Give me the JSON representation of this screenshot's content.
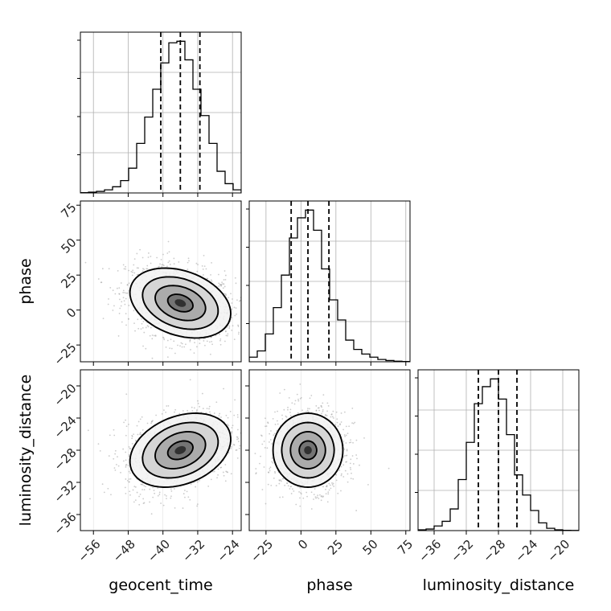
{
  "chart_data": {
    "type": "corner",
    "parameters": [
      "geocent_time",
      "phase",
      "luminosity_distance"
    ],
    "axes": {
      "geocent_time": {
        "label": "geocent_time",
        "range": [
          -59,
          -22
        ],
        "ticks": [
          -56,
          -48,
          -40,
          -32,
          -24
        ],
        "tick_labels": [
          "−56",
          "−48",
          "−40",
          "−32",
          "−24"
        ]
      },
      "phase": {
        "label": "phase",
        "range": [
          -37,
          78
        ],
        "ticks": [
          -25,
          0,
          25,
          50,
          75
        ],
        "tick_labels": [
          "−25",
          "0",
          "25",
          "50",
          "75"
        ]
      },
      "luminosity_distance": {
        "label": "luminosity_distance",
        "range": [
          -38,
          -18
        ],
        "ticks": [
          -36,
          -32,
          -28,
          -24,
          -20
        ],
        "tick_labels": [
          "−36",
          "−32",
          "−28",
          "−24",
          "−20"
        ]
      }
    },
    "quantiles": {
      "geocent_time": [
        -40.5,
        -36.0,
        -31.5
      ],
      "phase": [
        -7.0,
        5.0,
        20.0
      ],
      "luminosity_distance": [
        -30.5,
        -28.0,
        -25.7
      ]
    },
    "histograms": {
      "geocent_time": {
        "bin_edges": [
          -59,
          -57.15,
          -55.3,
          -53.45,
          -51.6,
          -49.75,
          -47.9,
          -46.05,
          -44.2,
          -42.35,
          -40.5,
          -38.65,
          -36.8,
          -34.95,
          -33.1,
          -31.25,
          -29.4,
          -27.55,
          -25.7,
          -23.85,
          -22
        ],
        "counts": [
          0.002,
          0.005,
          0.01,
          0.02,
          0.04,
          0.08,
          0.16,
          0.32,
          0.49,
          0.67,
          0.84,
          0.97,
          0.98,
          0.86,
          0.67,
          0.5,
          0.32,
          0.14,
          0.06,
          0.02
        ]
      },
      "phase": {
        "bin_edges": [
          -37,
          -31.25,
          -25.5,
          -19.75,
          -14,
          -8.25,
          -2.5,
          3.25,
          9,
          14.75,
          20.5,
          26.25,
          32,
          37.75,
          43.5,
          49.25,
          55,
          60.75,
          66.5,
          72.25,
          78
        ],
        "counts": [
          0.03,
          0.07,
          0.18,
          0.35,
          0.56,
          0.8,
          0.93,
          0.98,
          0.85,
          0.6,
          0.4,
          0.27,
          0.14,
          0.08,
          0.05,
          0.03,
          0.015,
          0.008,
          0.004,
          0.002
        ]
      },
      "luminosity_distance": {
        "bin_edges": [
          -38,
          -37,
          -36,
          -35,
          -34,
          -33,
          -32,
          -31,
          -30,
          -29,
          -28,
          -27,
          -26,
          -25,
          -24,
          -23,
          -22,
          -21,
          -20,
          -19,
          -18
        ],
        "counts": [
          0.005,
          0.01,
          0.03,
          0.06,
          0.14,
          0.33,
          0.57,
          0.82,
          0.93,
          0.98,
          0.85,
          0.62,
          0.36,
          0.23,
          0.13,
          0.05,
          0.015,
          0.005,
          0.002,
          0.001
        ]
      }
    },
    "joint": [
      {
        "x": "geocent_time",
        "y": "phase",
        "mean": [
          -36.0,
          5.0
        ],
        "sd": [
          5.8,
          12.5
        ],
        "corr": -0.3
      },
      {
        "x": "geocent_time",
        "y": "luminosity_distance",
        "mean": [
          -36.0,
          -28.0
        ],
        "sd": [
          5.8,
          2.3
        ],
        "corr": 0.3
      },
      {
        "x": "phase",
        "y": "luminosity_distance",
        "mean": [
          5.0,
          -28.0
        ],
        "sd": [
          12.5,
          2.3
        ],
        "corr": 0.0
      }
    ],
    "contour_sigmas": [
      0.5,
      1.0,
      1.5,
      2.0
    ],
    "grid": true
  }
}
